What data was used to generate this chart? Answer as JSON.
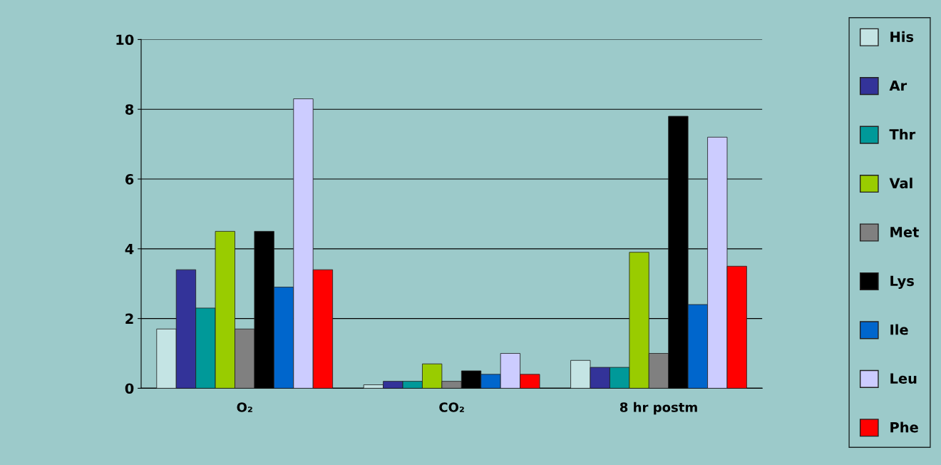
{
  "chart_data": {
    "type": "bar",
    "categories": [
      "O₂",
      "CO₂",
      "8 hr postm"
    ],
    "series": [
      {
        "name": "His",
        "color": "#c4e4e4",
        "values": [
          1.7,
          0.1,
          0.8
        ]
      },
      {
        "name": "Ar",
        "color": "#333399",
        "values": [
          3.4,
          0.2,
          0.6
        ]
      },
      {
        "name": "Thr",
        "color": "#009999",
        "values": [
          2.3,
          0.2,
          0.6
        ]
      },
      {
        "name": "Val",
        "color": "#99cc00",
        "values": [
          4.5,
          0.7,
          3.9
        ]
      },
      {
        "name": "Met",
        "color": "#808080",
        "values": [
          1.7,
          0.2,
          1.0
        ]
      },
      {
        "name": "Lys",
        "color": "#000000",
        "values": [
          4.5,
          0.5,
          7.8
        ]
      },
      {
        "name": "Ile",
        "color": "#0066cc",
        "values": [
          2.9,
          0.4,
          2.4
        ]
      },
      {
        "name": "Leu",
        "color": "#ccccff",
        "values": [
          8.3,
          1.0,
          7.2
        ]
      },
      {
        "name": "Phe",
        "color": "#ff0000",
        "values": [
          3.4,
          0.4,
          3.5
        ]
      }
    ],
    "ylim": [
      0,
      10
    ],
    "yticks": [
      0,
      2,
      4,
      6,
      8,
      10
    ],
    "grid": "y",
    "legend": "right"
  }
}
